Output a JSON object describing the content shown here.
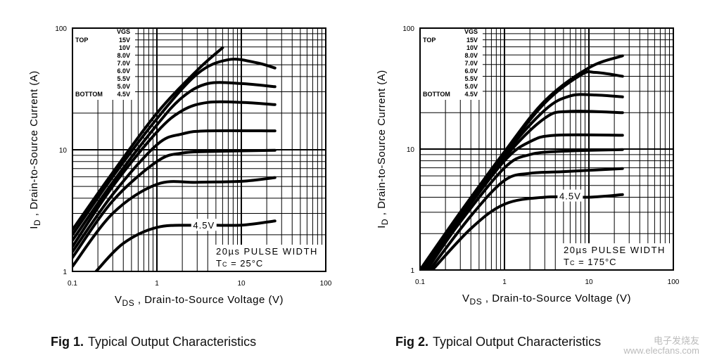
{
  "chart_data": [
    {
      "type": "line",
      "xlabel": "V_DS , Drain-to-Source Voltage (V)",
      "xlabel_main": "V",
      "xlabel_sub": "DS",
      "xlabel_rest": ", Drain-to-Source Voltage (V)",
      "ylabel_main": "I",
      "ylabel_sub": "D",
      "ylabel_rest": ", Drain-to-Source Current (A)",
      "x_scale": "log",
      "y_scale": "log",
      "xlim": [
        0.1,
        100
      ],
      "ylim": [
        1,
        100
      ],
      "x_ticks": [
        "0.1",
        "1",
        "10",
        "100"
      ],
      "y_ticks": [
        "1",
        "10",
        "100"
      ],
      "grid": true,
      "legend": {
        "header": "VGS",
        "top_label": "TOP",
        "bottom_label": "BOTTOM",
        "entries": [
          "15V",
          "10V",
          "8.0V",
          "7.0V",
          "6.0V",
          "5.5V",
          "5.0V",
          "4.5V"
        ],
        "placement": "top-left"
      },
      "annotation": {
        "line1": "20µs PULSE WIDTH",
        "line2_main": "T",
        "line2_sub": "C",
        "line2_rest": " = 25°C"
      },
      "curve_label": {
        "text": "4.5V",
        "x": 3.6,
        "y": 2.4
      },
      "series": [
        {
          "name": "15V",
          "points": [
            [
              0.1,
              2.2
            ],
            [
              0.3,
              6.5
            ],
            [
              1,
              20
            ],
            [
              3,
              45
            ],
            [
              6,
              69
            ]
          ]
        },
        {
          "name": "10V",
          "points": [
            [
              0.1,
              2.0
            ],
            [
              0.3,
              6
            ],
            [
              1,
              18
            ],
            [
              3,
              42
            ],
            [
              7,
              55
            ],
            [
              15,
              52
            ],
            [
              25,
              47
            ]
          ]
        },
        {
          "name": "8.0V",
          "points": [
            [
              0.1,
              1.8
            ],
            [
              0.3,
              5.4
            ],
            [
              1,
              16
            ],
            [
              2,
              27
            ],
            [
              4,
              35
            ],
            [
              10,
              35
            ],
            [
              25,
              33
            ]
          ]
        },
        {
          "name": "7.0V",
          "points": [
            [
              0.1,
              1.6
            ],
            [
              0.3,
              5
            ],
            [
              1,
              14
            ],
            [
              2,
              21
            ],
            [
              4,
              24.5
            ],
            [
              10,
              24.5
            ],
            [
              25,
              23.5
            ]
          ]
        },
        {
          "name": "6.0V",
          "points": [
            [
              0.1,
              1.45
            ],
            [
              0.3,
              4.3
            ],
            [
              1,
              11
            ],
            [
              2,
              13.5
            ],
            [
              4,
              14.3
            ],
            [
              25,
              14.3
            ]
          ]
        },
        {
          "name": "5.5V",
          "points": [
            [
              0.1,
              1.3
            ],
            [
              0.3,
              3.8
            ],
            [
              1,
              8
            ],
            [
              2,
              9.4
            ],
            [
              5,
              9.7
            ],
            [
              25,
              9.9
            ]
          ]
        },
        {
          "name": "5.0V",
          "points": [
            [
              0.1,
              1.1
            ],
            [
              0.3,
              3
            ],
            [
              1,
              5.2
            ],
            [
              3,
              5.4
            ],
            [
              10,
              5.5
            ],
            [
              25,
              5.9
            ]
          ]
        },
        {
          "name": "4.5V",
          "points": [
            [
              0.19,
              1
            ],
            [
              0.4,
              1.7
            ],
            [
              1,
              2.3
            ],
            [
              3,
              2.4
            ],
            [
              10,
              2.4
            ],
            [
              25,
              2.6
            ]
          ]
        }
      ],
      "caption": {
        "fig": "Fig 1.",
        "text": "Typical Output Characteristics"
      }
    },
    {
      "type": "line",
      "xlabel_main": "V",
      "xlabel_sub": "DS",
      "xlabel_rest": ", Drain-to-Source Voltage (V)",
      "ylabel_main": "I",
      "ylabel_sub": "D",
      "ylabel_rest": ", Drain-to-Source Current (A)",
      "x_scale": "log",
      "y_scale": "log",
      "xlim": [
        0.1,
        100
      ],
      "ylim": [
        1,
        100
      ],
      "x_ticks": [
        "0.1",
        "1",
        "10",
        "100"
      ],
      "y_ticks": [
        "1",
        "10",
        "100"
      ],
      "grid": true,
      "legend": {
        "header": "VGS",
        "top_label": "TOP",
        "bottom_label": "BOTTOM",
        "entries": [
          "15V",
          "10V",
          "8.0V",
          "7.0V",
          "6.0V",
          "5.5V",
          "5.0V",
          "4.5V"
        ],
        "placement": "top-left"
      },
      "annotation": {
        "line1": "20µs PULSE WIDTH",
        "line2_main": "T",
        "line2_sub": "C",
        "line2_rest": " = 175°C"
      },
      "curve_label": {
        "text": "4.5V",
        "x": 6,
        "y": 4.1
      },
      "series": [
        {
          "name": "15V",
          "points": [
            [
              0.1,
              1
            ],
            [
              0.3,
              3
            ],
            [
              1,
              9.5
            ],
            [
              3,
              25
            ],
            [
              10,
              47
            ],
            [
              25,
              59
            ]
          ]
        },
        {
          "name": "10V",
          "points": [
            [
              0.1,
              1
            ],
            [
              0.3,
              3
            ],
            [
              1,
              9.3
            ],
            [
              3,
              24
            ],
            [
              8,
              41
            ],
            [
              12,
              43
            ],
            [
              25,
              40
            ]
          ]
        },
        {
          "name": "8.0V",
          "points": [
            [
              0.1,
              0.95
            ],
            [
              0.3,
              2.9
            ],
            [
              1,
              9
            ],
            [
              3,
              21
            ],
            [
              6,
              27.5
            ],
            [
              12,
              28
            ],
            [
              25,
              27
            ]
          ]
        },
        {
          "name": "7.0V",
          "points": [
            [
              0.1,
              0.95
            ],
            [
              0.3,
              2.8
            ],
            [
              1,
              8.5
            ],
            [
              3,
              18
            ],
            [
              6,
              20.5
            ],
            [
              25,
              20
            ]
          ]
        },
        {
          "name": "6.0V",
          "points": [
            [
              0.11,
              1
            ],
            [
              0.3,
              2.7
            ],
            [
              1,
              8
            ],
            [
              2,
              11.5
            ],
            [
              4,
              13
            ],
            [
              25,
              13
            ]
          ]
        },
        {
          "name": "5.5V",
          "points": [
            [
              0.12,
              1
            ],
            [
              0.3,
              2.5
            ],
            [
              1,
              7
            ],
            [
              2,
              9
            ],
            [
              5,
              9.6
            ],
            [
              25,
              9.9
            ]
          ]
        },
        {
          "name": "5.0V",
          "points": [
            [
              0.13,
              1
            ],
            [
              0.4,
              2.8
            ],
            [
              1,
              5.5
            ],
            [
              2,
              6.3
            ],
            [
              5,
              6.5
            ],
            [
              25,
              6.9
            ]
          ]
        },
        {
          "name": "4.5V",
          "points": [
            [
              0.14,
              1
            ],
            [
              0.4,
              2.2
            ],
            [
              1,
              3.5
            ],
            [
              3,
              4
            ],
            [
              10,
              4
            ],
            [
              25,
              4.2
            ]
          ]
        }
      ],
      "caption": {
        "fig": "Fig 2.",
        "text": "Typical Output Characteristics"
      }
    }
  ],
  "watermark": {
    "line1": "电子发烧友",
    "line2": "www.elecfans.com"
  }
}
